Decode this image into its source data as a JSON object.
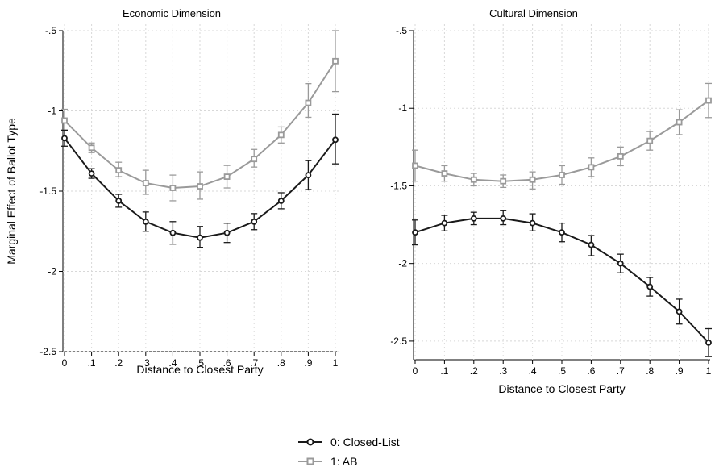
{
  "chart_data": [
    {
      "type": "line",
      "title": "Economic Dimension",
      "xlabel": "Distance to Closest Party",
      "ylabel": "Marginal Effect of Ballot Type",
      "x": [
        0,
        0.1,
        0.2,
        0.3,
        0.4,
        0.5,
        0.6,
        0.7,
        0.8,
        0.9,
        1
      ],
      "x_tick_labels": [
        "0",
        ".1",
        ".2",
        ".3",
        ".4",
        ".5",
        ".6",
        ".7",
        ".8",
        ".9",
        "1"
      ],
      "y_ticks": [
        -0.5,
        -1,
        -1.5,
        -2,
        -2.5
      ],
      "y_tick_labels": [
        "-.5",
        "-1",
        "-1.5",
        "-2",
        "-2.5"
      ],
      "ylim": [
        -2.5,
        -0.5
      ],
      "grid": true,
      "series": [
        {
          "name": "0: Closed-List",
          "color": "#1a1a1a",
          "marker": "circle",
          "values": [
            -1.17,
            -1.39,
            -1.56,
            -1.69,
            -1.76,
            -1.79,
            -1.76,
            -1.69,
            -1.56,
            -1.4,
            -1.18
          ],
          "lower": [
            -1.22,
            -1.42,
            -1.6,
            -1.75,
            -1.83,
            -1.85,
            -1.82,
            -1.74,
            -1.61,
            -1.49,
            -1.33
          ],
          "upper": [
            -1.12,
            -1.36,
            -1.52,
            -1.63,
            -1.69,
            -1.72,
            -1.7,
            -1.64,
            -1.51,
            -1.31,
            -1.02
          ]
        },
        {
          "name": "1: AB",
          "color": "#9a9a9a",
          "marker": "square",
          "values": [
            -1.06,
            -1.23,
            -1.37,
            -1.45,
            -1.48,
            -1.47,
            -1.41,
            -1.3,
            -1.15,
            -0.95,
            -0.69
          ],
          "lower": [
            -1.12,
            -1.26,
            -1.41,
            -1.52,
            -1.56,
            -1.55,
            -1.48,
            -1.35,
            -1.2,
            -1.04,
            -0.88
          ],
          "upper": [
            -0.99,
            -1.2,
            -1.32,
            -1.37,
            -1.4,
            -1.38,
            -1.34,
            -1.24,
            -1.1,
            -0.83,
            -0.5
          ]
        }
      ]
    },
    {
      "type": "line",
      "title": "Cultural Dimension",
      "xlabel": "Distance to Closest Party",
      "ylabel": "",
      "x": [
        0,
        0.1,
        0.2,
        0.3,
        0.4,
        0.5,
        0.6,
        0.7,
        0.8,
        0.9,
        1
      ],
      "x_tick_labels": [
        "0",
        ".1",
        ".2",
        ".3",
        ".4",
        ".5",
        ".6",
        ".7",
        ".8",
        ".9",
        "1"
      ],
      "y_ticks": [
        -0.5,
        -1,
        -1.5,
        -2,
        -2.5
      ],
      "y_tick_labels": [
        "-.5",
        "-1",
        "-1.5",
        "-2",
        "-2.5"
      ],
      "ylim": [
        -2.62,
        -0.5
      ],
      "grid": true,
      "series": [
        {
          "name": "0: Closed-List",
          "color": "#1a1a1a",
          "marker": "circle",
          "values": [
            -1.8,
            -1.74,
            -1.71,
            -1.71,
            -1.74,
            -1.8,
            -1.88,
            -2.0,
            -2.15,
            -2.31,
            -2.51
          ],
          "lower": [
            -1.88,
            -1.79,
            -1.75,
            -1.75,
            -1.79,
            -1.86,
            -1.95,
            -2.06,
            -2.21,
            -2.39,
            -2.6
          ],
          "upper": [
            -1.72,
            -1.69,
            -1.67,
            -1.66,
            -1.68,
            -1.74,
            -1.82,
            -1.94,
            -2.09,
            -2.23,
            -2.42
          ]
        },
        {
          "name": "1: AB",
          "color": "#9a9a9a",
          "marker": "square",
          "values": [
            -1.37,
            -1.42,
            -1.46,
            -1.47,
            -1.46,
            -1.43,
            -1.38,
            -1.31,
            -1.21,
            -1.09,
            -0.95
          ],
          "lower": [
            -1.47,
            -1.47,
            -1.5,
            -1.51,
            -1.52,
            -1.49,
            -1.44,
            -1.37,
            -1.27,
            -1.17,
            -1.06
          ],
          "upper": [
            -1.27,
            -1.37,
            -1.42,
            -1.43,
            -1.41,
            -1.37,
            -1.32,
            -1.25,
            -1.15,
            -1.01,
            -0.84
          ]
        }
      ]
    }
  ],
  "legend": {
    "placement": "bottom-center",
    "items": [
      {
        "label": "0: Closed-List",
        "color": "#1a1a1a",
        "marker": "circle"
      },
      {
        "label": "1: AB",
        "color": "#9a9a9a",
        "marker": "square"
      }
    ]
  }
}
